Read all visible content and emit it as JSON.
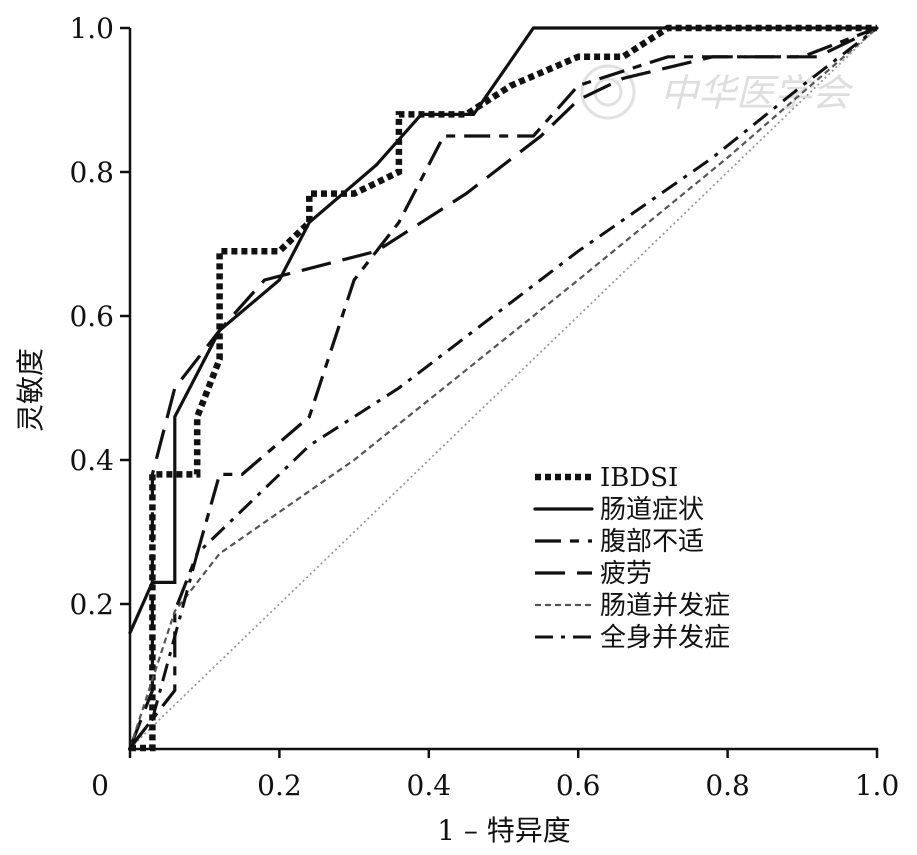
{
  "chart_data": {
    "type": "line",
    "xlabel": "1 – 特异度",
    "ylabel": "灵敏度",
    "xlim": [
      0,
      1.0
    ],
    "ylim": [
      0,
      1.0
    ],
    "x_ticks": [
      "0",
      "0.2",
      "0.4",
      "0.6",
      "0.8",
      "1.0"
    ],
    "y_ticks": [
      "0.2",
      "0.4",
      "0.6",
      "0.8",
      "1.0"
    ],
    "grid": false,
    "legend_position": "lower-right",
    "reference_line": {
      "from": [
        0,
        0
      ],
      "to": [
        1,
        1
      ],
      "style": "dotted"
    },
    "series": [
      {
        "name": "IBDSI",
        "style": "dotted-heavy",
        "points": [
          [
            0,
            0
          ],
          [
            0.03,
            0
          ],
          [
            0.03,
            0.38
          ],
          [
            0.09,
            0.38
          ],
          [
            0.09,
            0.46
          ],
          [
            0.12,
            0.54
          ],
          [
            0.12,
            0.69
          ],
          [
            0.2,
            0.69
          ],
          [
            0.24,
            0.73
          ],
          [
            0.24,
            0.77
          ],
          [
            0.3,
            0.77
          ],
          [
            0.36,
            0.8
          ],
          [
            0.36,
            0.88
          ],
          [
            0.45,
            0.88
          ],
          [
            0.51,
            0.92
          ],
          [
            0.6,
            0.96
          ],
          [
            0.66,
            0.96
          ],
          [
            0.72,
            1.0
          ],
          [
            1.0,
            1.0
          ]
        ]
      },
      {
        "name": "肠道症状",
        "style": "solid",
        "points": [
          [
            0,
            0.16
          ],
          [
            0.03,
            0.23
          ],
          [
            0.06,
            0.23
          ],
          [
            0.06,
            0.46
          ],
          [
            0.12,
            0.58
          ],
          [
            0.2,
            0.65
          ],
          [
            0.24,
            0.73
          ],
          [
            0.33,
            0.81
          ],
          [
            0.39,
            0.88
          ],
          [
            0.46,
            0.88
          ],
          [
            0.54,
            1.0
          ],
          [
            1.0,
            1.0
          ]
        ]
      },
      {
        "name": "腹部不适",
        "style": "long-short-dash",
        "points": [
          [
            0,
            0
          ],
          [
            0.06,
            0.08
          ],
          [
            0.06,
            0.19
          ],
          [
            0.09,
            0.27
          ],
          [
            0.12,
            0.38
          ],
          [
            0.15,
            0.38
          ],
          [
            0.24,
            0.46
          ],
          [
            0.3,
            0.65
          ],
          [
            0.36,
            0.73
          ],
          [
            0.42,
            0.85
          ],
          [
            0.54,
            0.85
          ],
          [
            0.6,
            0.92
          ],
          [
            0.72,
            0.96
          ],
          [
            0.9,
            0.96
          ],
          [
            1.0,
            1.0
          ]
        ]
      },
      {
        "name": "疲劳",
        "style": "long-dash",
        "points": [
          [
            0,
            0
          ],
          [
            0.03,
            0.08
          ],
          [
            0.03,
            0.38
          ],
          [
            0.06,
            0.5
          ],
          [
            0.12,
            0.58
          ],
          [
            0.18,
            0.65
          ],
          [
            0.33,
            0.69
          ],
          [
            0.45,
            0.77
          ],
          [
            0.55,
            0.85
          ],
          [
            0.6,
            0.9
          ],
          [
            0.66,
            0.93
          ],
          [
            0.78,
            0.96
          ],
          [
            0.92,
            0.96
          ],
          [
            1.0,
            1.0
          ]
        ]
      },
      {
        "name": "肠道并发症",
        "style": "short-dash",
        "points": [
          [
            0,
            0
          ],
          [
            0.06,
            0.19
          ],
          [
            0.12,
            0.27
          ],
          [
            0.3,
            0.4
          ],
          [
            0.6,
            0.65
          ],
          [
            0.8,
            0.82
          ],
          [
            1.0,
            1.0
          ]
        ]
      },
      {
        "name": "全身并发症",
        "style": "dash-dot",
        "points": [
          [
            0,
            0
          ],
          [
            0.03,
            0.04
          ],
          [
            0.09,
            0.27
          ],
          [
            0.24,
            0.42
          ],
          [
            0.36,
            0.5
          ],
          [
            0.6,
            0.69
          ],
          [
            0.78,
            0.82
          ],
          [
            0.9,
            0.92
          ],
          [
            1.0,
            1.0
          ]
        ]
      }
    ]
  },
  "watermark": {
    "text": "中华医学会"
  }
}
